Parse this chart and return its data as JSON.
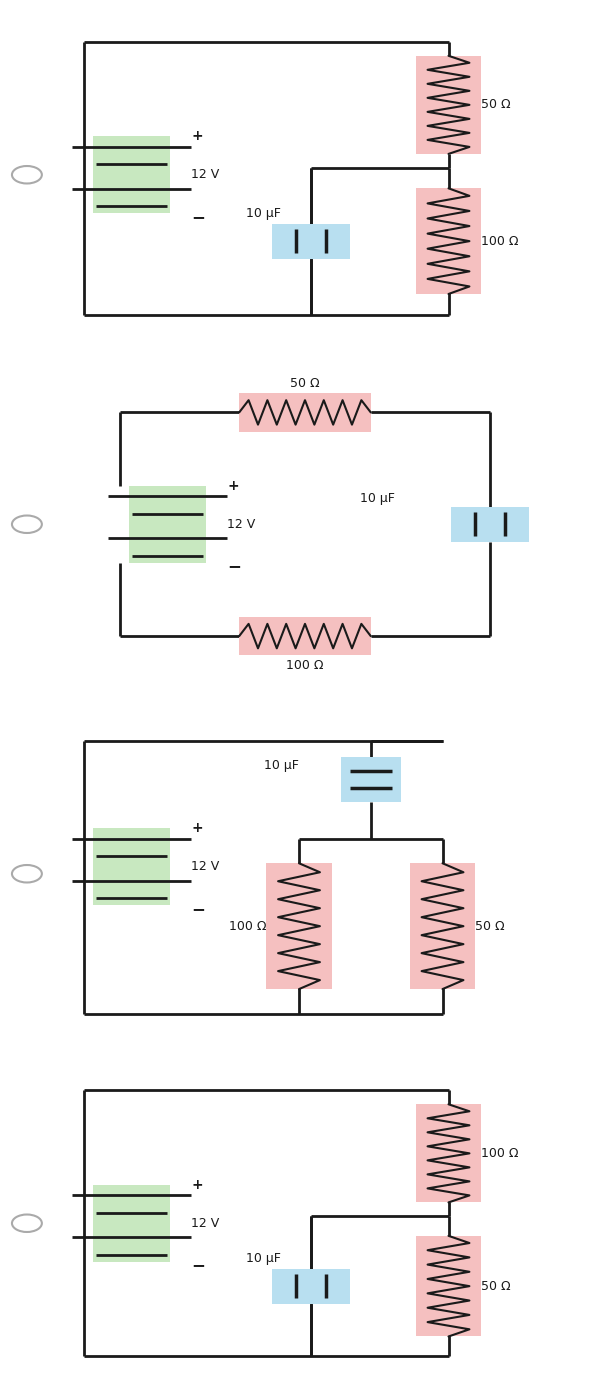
{
  "bg_color": "#ffffff",
  "line_color": "#1a1a1a",
  "resistor_bg": "#f5c0c0",
  "capacitor_bg": "#b8dff0",
  "battery_bg": "#c8e8c0",
  "diagrams": [
    {
      "battery_label": "12 V",
      "cap_label": "10 μF",
      "res1_label": "50 Ω",
      "res2_label": "100 Ω"
    },
    {
      "battery_label": "12 V",
      "cap_label": "10 μF",
      "res1_label": "50 Ω",
      "res2_label": "100 Ω"
    },
    {
      "battery_label": "12 V",
      "cap_label": "10 μF",
      "res1_label": "100 Ω",
      "res2_label": "50 Ω"
    },
    {
      "battery_label": "12 V",
      "cap_label": "10 μF",
      "res1_label": "100 Ω",
      "res2_label": "50 Ω"
    }
  ]
}
